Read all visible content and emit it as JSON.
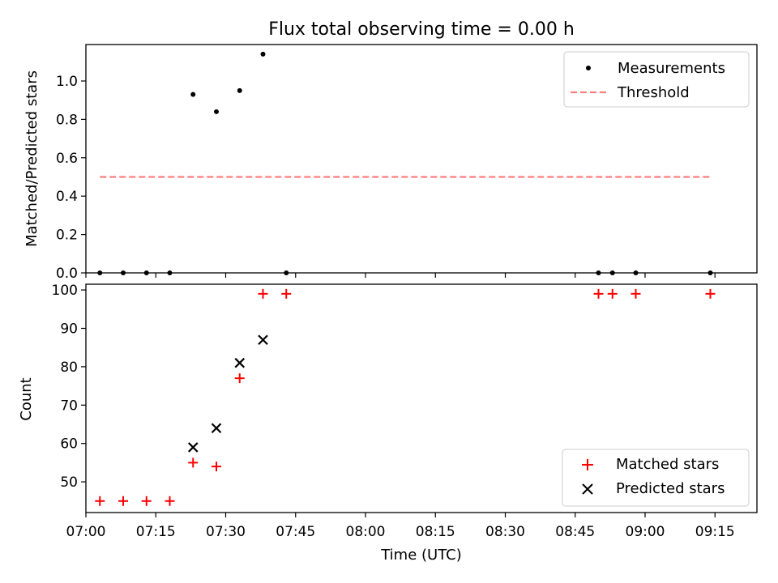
{
  "title": "Flux total observing time = 0.00 h",
  "chart_data": [
    {
      "type": "scatter",
      "title": "Flux total observing time = 0.00 h",
      "xlabel": "",
      "ylabel": "Matched/Predicted stars",
      "ylim": [
        0,
        1.19
      ],
      "yticks": [
        0.0,
        0.2,
        0.4,
        0.6,
        0.8,
        1.0
      ],
      "ytick_labels": [
        "0.0",
        "0.2",
        "0.4",
        "0.6",
        "0.8",
        "1.0"
      ],
      "legend_position": "top-right",
      "grid": false,
      "series": [
        {
          "name": "Measurements",
          "kind": "scatter",
          "marker": "dot",
          "color": "#000000",
          "x": [
            "07:03",
            "07:08",
            "07:13",
            "07:18",
            "07:23",
            "07:28",
            "07:33",
            "07:38",
            "07:43",
            "08:50",
            "08:53",
            "08:58",
            "09:14"
          ],
          "y": [
            0.0,
            0.0,
            0.0,
            0.0,
            0.93,
            0.84,
            0.95,
            1.14,
            0.0,
            0.0,
            0.0,
            0.0,
            0.0
          ]
        },
        {
          "name": "Threshold",
          "kind": "line",
          "style": "dashed",
          "color": "#ff7f7f",
          "x": [
            "07:03",
            "09:14"
          ],
          "y": [
            0.5,
            0.5
          ]
        }
      ]
    },
    {
      "type": "scatter",
      "title": "",
      "xlabel": "Time (UTC)",
      "ylabel": "Count",
      "ylim": [
        42,
        101.5
      ],
      "yticks": [
        50,
        60,
        70,
        80,
        90,
        100
      ],
      "ytick_labels": [
        "50",
        "60",
        "70",
        "80",
        "90",
        "100"
      ],
      "xlim": [
        "07:00",
        "09:24"
      ],
      "xticks": [
        "07:00",
        "07:15",
        "07:30",
        "07:45",
        "08:00",
        "08:15",
        "08:30",
        "08:45",
        "09:00",
        "09:15"
      ],
      "legend_position": "bottom-right",
      "grid": false,
      "series": [
        {
          "name": "Matched stars",
          "kind": "scatter",
          "marker": "plus",
          "color": "#ff0000",
          "x": [
            "07:03",
            "07:08",
            "07:13",
            "07:18",
            "07:23",
            "07:28",
            "07:33",
            "07:38",
            "07:43",
            "08:50",
            "08:53",
            "08:58",
            "09:14"
          ],
          "y": [
            45,
            45,
            45,
            45,
            55,
            54,
            77,
            99,
            99,
            99,
            99,
            99,
            99
          ]
        },
        {
          "name": "Predicted stars",
          "kind": "scatter",
          "marker": "x",
          "color": "#000000",
          "x": [
            "07:23",
            "07:28",
            "07:33",
            "07:38"
          ],
          "y": [
            59,
            64,
            81,
            87
          ]
        }
      ]
    }
  ]
}
